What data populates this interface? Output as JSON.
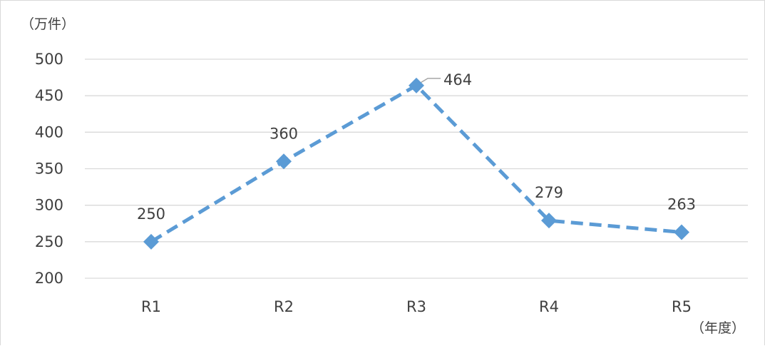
{
  "chart_data": {
    "type": "line",
    "title": "",
    "y_unit_label": "（万件）",
    "x_unit_label": "（年度）",
    "categories": [
      "R1",
      "R2",
      "R3",
      "R4",
      "R5"
    ],
    "series": [
      {
        "values": [
          250,
          360,
          464,
          279,
          263
        ],
        "data_labels": [
          "250",
          "360",
          "464",
          "279",
          "263"
        ],
        "color": "#5b9bd5",
        "line_style": "dashed",
        "marker": "diamond"
      }
    ],
    "ylim": [
      200,
      500
    ],
    "y_ticks": [
      200,
      250,
      300,
      350,
      400,
      450,
      500
    ],
    "y_tick_labels": [
      "200",
      "250",
      "300",
      "350",
      "400",
      "450",
      "500"
    ],
    "grid": true,
    "legend": "none"
  }
}
